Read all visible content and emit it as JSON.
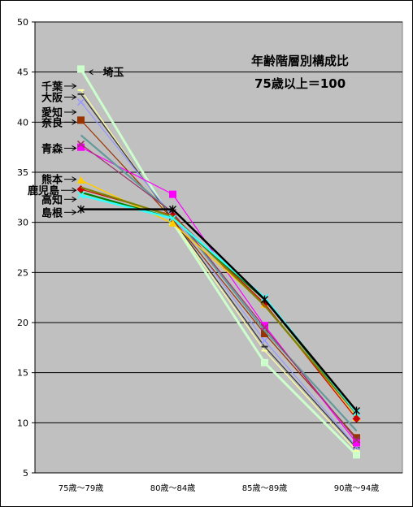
{
  "chart_data": {
    "type": "line",
    "title": "年齢階層別構成比",
    "subtitle": "75歳以上＝100",
    "categories": [
      "75歳～79歳",
      "80歳～84歳",
      "85歳～89歳",
      "90歳～94歳"
    ],
    "ylim": [
      5,
      50
    ],
    "yticks": [
      5,
      10,
      15,
      20,
      25,
      30,
      35,
      40,
      45,
      50
    ],
    "grid": true,
    "background": "#c0c0c0",
    "series": [
      {
        "name": "埼玉",
        "values": [
          45.3,
          30.0,
          16.0,
          6.8
        ],
        "color": "#ccffcc",
        "marker": "square",
        "width": 3,
        "labelY": 45.0,
        "labelSide": "right"
      },
      {
        "name": "千葉",
        "values": [
          43.2,
          30.1,
          17.2,
          7.2
        ],
        "color": "#ffff99",
        "marker": "dash",
        "width": 1.2,
        "labelY": 43.6,
        "labelSide": "left"
      },
      {
        "name": "大阪",
        "values": [
          42.8,
          30.3,
          17.6,
          7.5
        ],
        "color": "#333333",
        "marker": "dash",
        "width": 1.2,
        "labelY": 42.5,
        "labelSide": "left"
      },
      {
        "name": "愛知",
        "values": [
          42.0,
          30.6,
          18.2,
          7.6
        ],
        "color": "#9999ff",
        "marker": "x",
        "width": 1.2,
        "labelY": 41.0,
        "labelSide": "left"
      },
      {
        "name": "奈良",
        "values": [
          40.2,
          30.3,
          18.9,
          8.5
        ],
        "color": "#993300",
        "marker": "square",
        "width": 1.2,
        "labelY": 40.0,
        "labelSide": "left"
      },
      {
        "name": "青森",
        "values": [
          37.5,
          32.8,
          19.7,
          8.0
        ],
        "color": "#ff00ff",
        "marker": "square",
        "width": 1.2,
        "labelY": 37.4,
        "labelSide": "left"
      },
      {
        "name": "",
        "values": [
          38.7,
          30.9,
          19.2,
          9.2
        ],
        "color": "#669999",
        "marker": "none",
        "width": 2.2,
        "labelY": null,
        "labelSide": "left"
      },
      {
        "name": "",
        "values": [
          37.8,
          31.0,
          19.5,
          8.3
        ],
        "color": "#993366",
        "marker": "x",
        "width": 1.2,
        "labelY": null,
        "labelSide": "left"
      },
      {
        "name": "熊本",
        "values": [
          34.2,
          29.9,
          21.8,
          10.5
        ],
        "color": "#ffcc00",
        "marker": "triangle",
        "width": 1.5,
        "labelY": 34.3,
        "labelSide": "left"
      },
      {
        "name": "鹿児島",
        "values": [
          33.3,
          30.7,
          21.9,
          10.4
        ],
        "color": "#cc0000",
        "marker": "diamond",
        "width": 1.2,
        "labelY": 33.2,
        "labelSide": "left"
      },
      {
        "name": "",
        "values": [
          33.5,
          30.6,
          21.7,
          10.9
        ],
        "color": "#808000",
        "marker": "none",
        "width": 2.2,
        "labelY": null,
        "labelSide": "left"
      },
      {
        "name": "",
        "values": [
          33.0,
          30.4,
          22.3,
          11.0
        ],
        "color": "#008000",
        "marker": "none",
        "width": 2.2,
        "labelY": null,
        "labelSide": "left"
      },
      {
        "name": "高知",
        "values": [
          32.7,
          30.4,
          22.5,
          11.0
        ],
        "color": "#33ffff",
        "marker": "x",
        "width": 2.5,
        "labelY": 32.3,
        "labelSide": "left"
      },
      {
        "name": "島根",
        "values": [
          31.3,
          31.3,
          22.3,
          11.2
        ],
        "color": "#000000",
        "marker": "star",
        "width": 2.5,
        "labelY": 31.0,
        "labelSide": "left"
      }
    ]
  }
}
